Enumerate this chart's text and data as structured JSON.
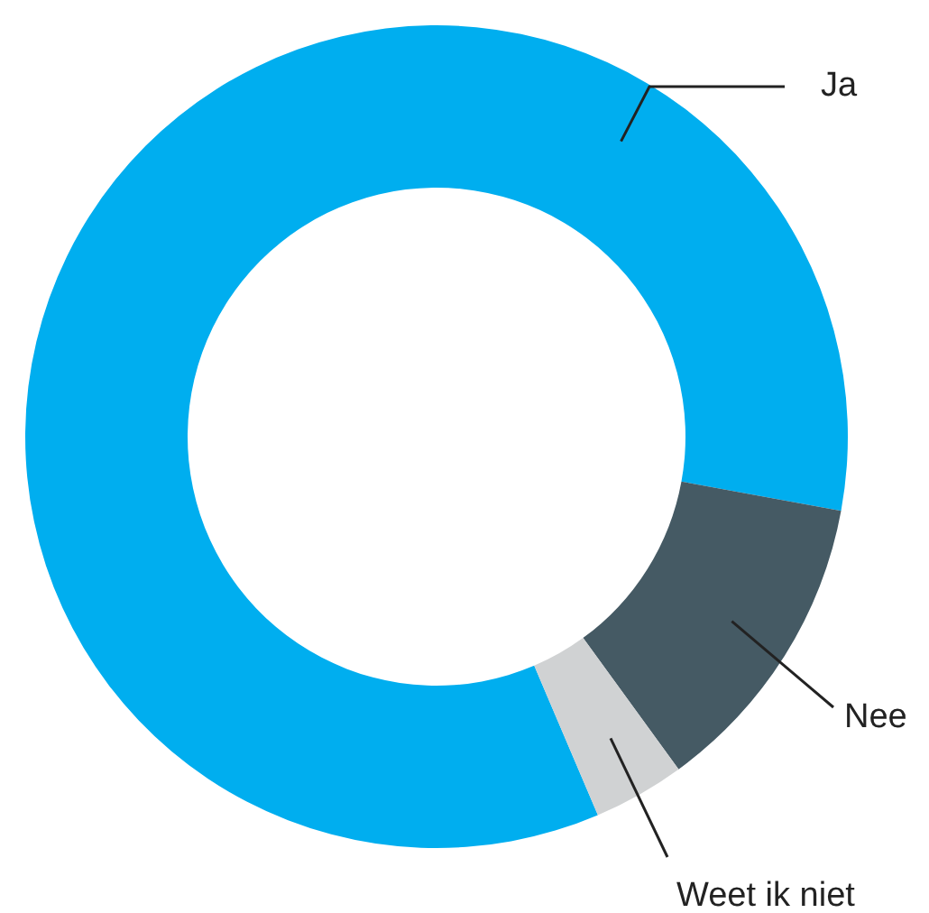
{
  "chart_data": {
    "type": "donut",
    "categories": [
      "Ja",
      "Nee",
      "Weet ik niet"
    ],
    "values": [
      84.3,
      12.1,
      3.6
    ],
    "colors": [
      "#00aeef",
      "#455a64",
      "#d0d2d3"
    ]
  }
}
